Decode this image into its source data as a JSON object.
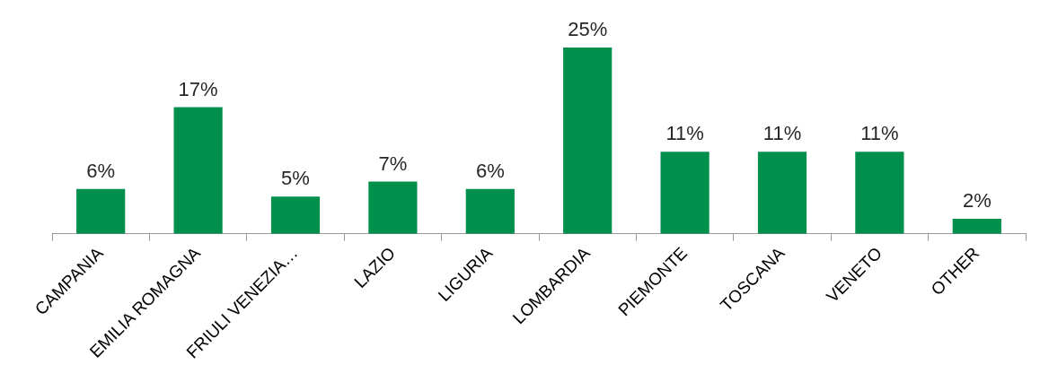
{
  "chart_data": {
    "type": "bar",
    "categories": [
      "CAMPANIA",
      "EMILIA ROMAGNA",
      "FRIULI VENEZIA…",
      "LAZIO",
      "LIGURIA",
      "LOMBARDIA",
      "PIEMONTE",
      "TOSCANA",
      "VENETO",
      "OTHER"
    ],
    "values": [
      6,
      17,
      5,
      7,
      6,
      25,
      11,
      11,
      11,
      2
    ],
    "value_labels": [
      "6%",
      "17%",
      "5%",
      "7%",
      "6%",
      "25%",
      "11%",
      "11%",
      "11%",
      "2%"
    ],
    "color": "#00904c",
    "legend": false,
    "grid": false
  }
}
